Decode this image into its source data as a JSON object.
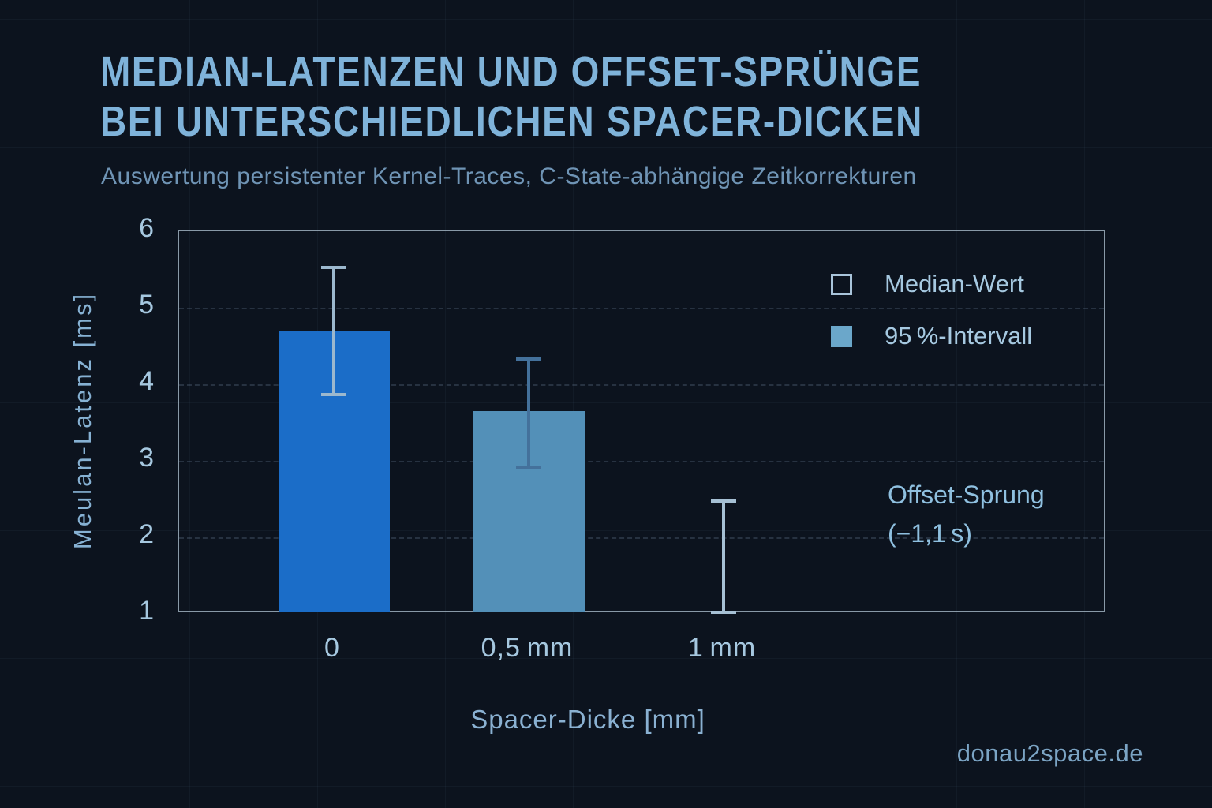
{
  "header": {
    "title_lines": [
      "MEDIAN-LATENZEN UND OFFSET-SPRÜNGE",
      "BEI UNTERSCHIEDLICHEN SPACER-DICKEN"
    ],
    "subtitle": "Auswertung persistenter Kernel-Traces, C-State-abhängige Zeitkorrekturen"
  },
  "footer": {
    "text": "donau2space.de"
  },
  "colors": {
    "background": "#0c131e",
    "title": "#7fb3da",
    "subtitle": "#6f94b5",
    "frame": "#a0b2c0",
    "tick_label": "#a6c8e0",
    "legend_swatch_outline": "#a9c4da",
    "legend_swatch_fill": "#6ba7ca"
  },
  "chart_data": {
    "type": "bar",
    "title": "MEDIAN-LATENZEN UND OFFSET-SPRÜNGE BEI UNTERSCHIEDLICHEN SPACER-DICKEN",
    "subtitle": "Auswertung persistenter Kernel-Traces, C-State-abhängige Zeitkorrekturen",
    "xlabel": "Spacer-Dicke [mm]",
    "ylabel": "Meulan-Latenz [ms]",
    "ylim": [
      1,
      6
    ],
    "yticks": [
      1,
      2,
      3,
      4,
      5,
      6
    ],
    "grid": "horizontal-dashed",
    "legend_position": "upper-right-inside",
    "categories": [
      "0",
      "0,5 mm",
      "1 mm"
    ],
    "series": [
      {
        "name": "Median-Wert",
        "values": [
          4.7,
          3.65,
          null
        ]
      },
      {
        "name": "95 %-Intervall",
        "lower": [
          3.85,
          2.9,
          1.0
        ],
        "upper": [
          5.55,
          4.35,
          2.5
        ]
      }
    ],
    "bar_colors": [
      "#1b6dc8",
      "#5390b8",
      null
    ],
    "errorbar_colors": [
      "#9cb8ce",
      "#44719b",
      "#a6c0d4"
    ],
    "annotation": {
      "text_lines": [
        "Offset-Sprung",
        "(−1,1 s)"
      ],
      "x_category": "1 mm"
    }
  }
}
